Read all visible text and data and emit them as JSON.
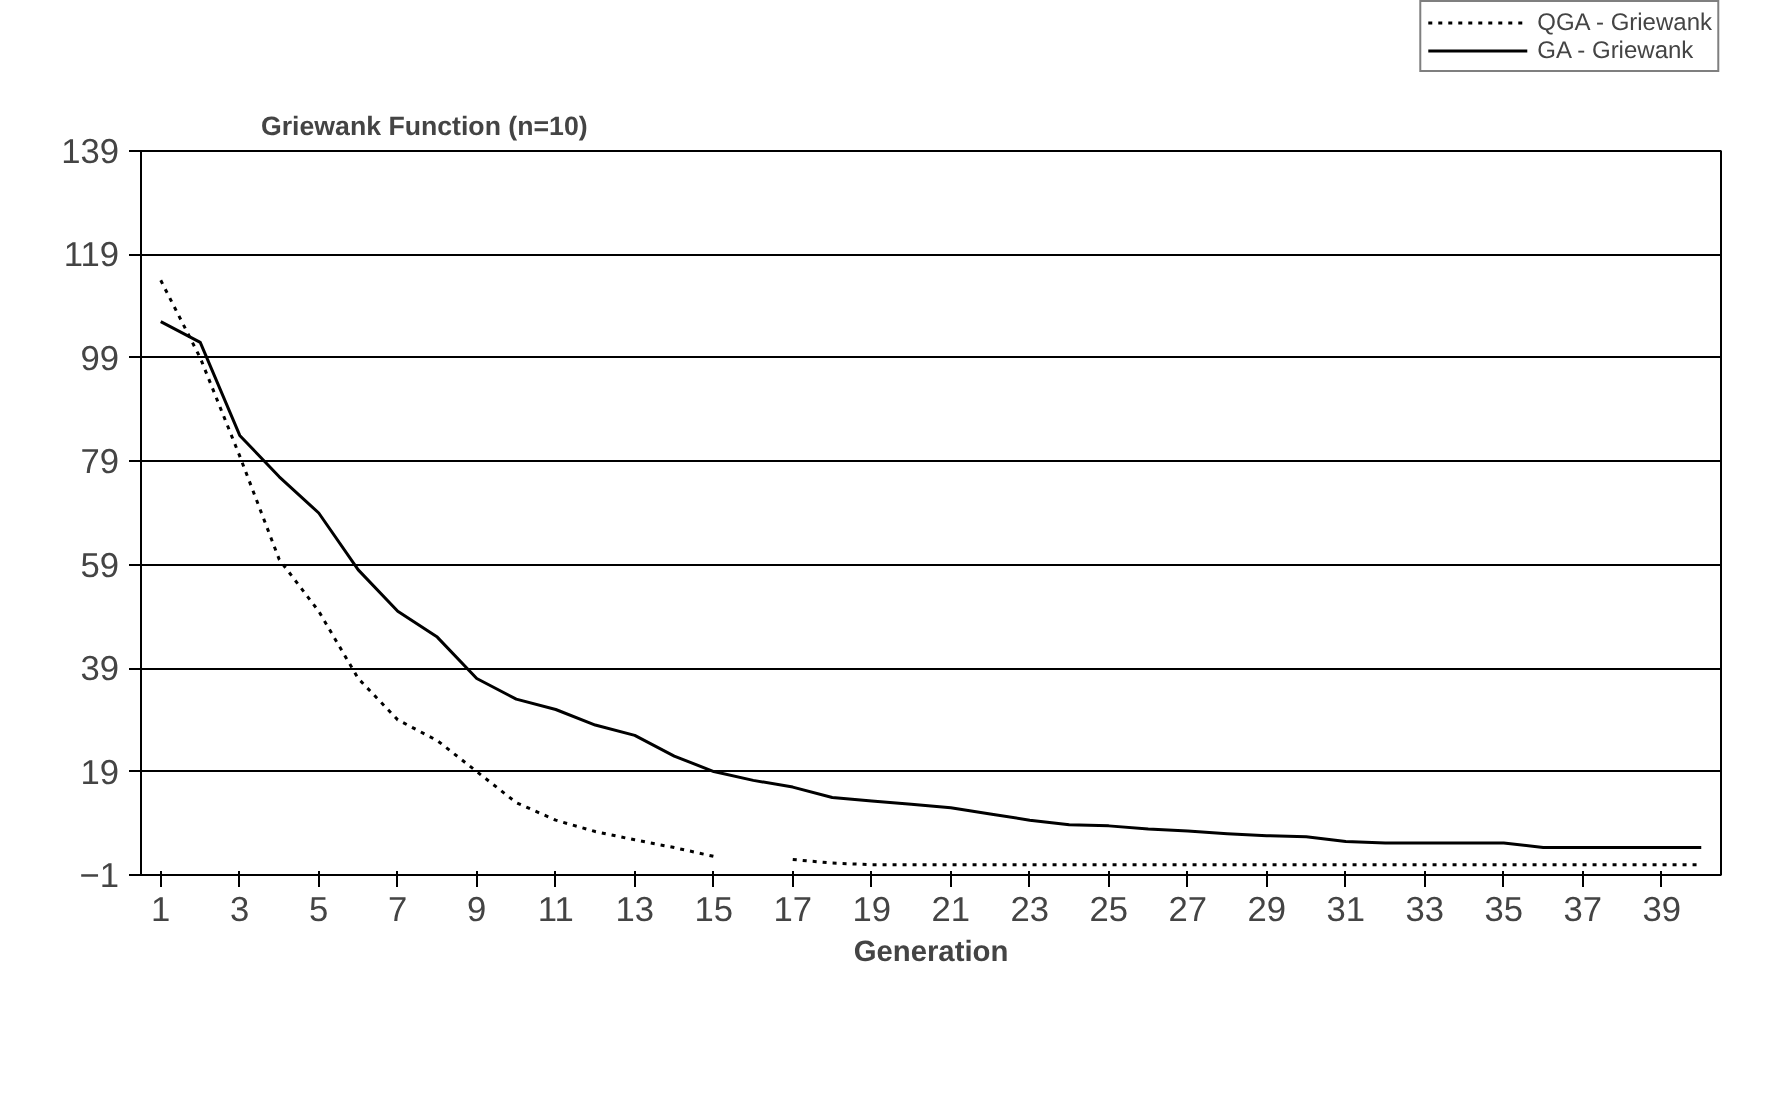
{
  "chart_data": {
    "type": "line",
    "title": "Griewank Function (n=10)",
    "xlabel": "Generation",
    "x": [
      1,
      2,
      3,
      4,
      5,
      6,
      7,
      8,
      9,
      10,
      11,
      12,
      13,
      14,
      15,
      16,
      17,
      18,
      19,
      20,
      21,
      22,
      23,
      24,
      25,
      26,
      27,
      28,
      29,
      30,
      31,
      32,
      33,
      34,
      35,
      36,
      37,
      38,
      39,
      40
    ],
    "series": [
      {
        "name": "QGA - Griewank",
        "color": "#000000",
        "line_style": "dotted",
        "values": [
          114,
          99,
          80,
          60,
          50,
          37,
          29,
          25,
          19,
          13,
          9.6,
          7.4,
          5.8,
          4.3,
          2.6,
          null,
          2,
          1.3,
          1,
          1,
          1,
          1,
          1,
          1,
          1,
          1,
          1,
          1,
          1,
          1,
          1,
          1,
          1,
          1,
          1,
          1,
          1,
          1,
          1,
          1
        ]
      },
      {
        "name": "GA - Griewank",
        "color": "#000000",
        "line_style": "solid",
        "values": [
          106,
          102,
          84,
          76,
          69,
          58,
          50,
          45,
          37,
          33,
          31,
          28,
          26,
          22,
          19,
          17.3,
          16,
          14,
          13.3,
          12.7,
          12,
          10.8,
          9.6,
          8.7,
          8.5,
          7.9,
          7.5,
          7,
          6.6,
          6.4,
          5.5,
          5.2,
          5.2,
          5.2,
          5.2,
          4.3,
          4.3,
          4.3,
          4.3,
          4.3
        ]
      }
    ],
    "xlim": [
      0.5,
      40.5
    ],
    "xticks": [
      1,
      3,
      5,
      7,
      9,
      11,
      13,
      15,
      17,
      19,
      21,
      23,
      25,
      27,
      29,
      31,
      33,
      35,
      37,
      39
    ],
    "ylim": [
      -1,
      139
    ],
    "yticks": [
      -1,
      19,
      39,
      59,
      79,
      99,
      119,
      139
    ],
    "grid": "y",
    "legend": "top right"
  }
}
